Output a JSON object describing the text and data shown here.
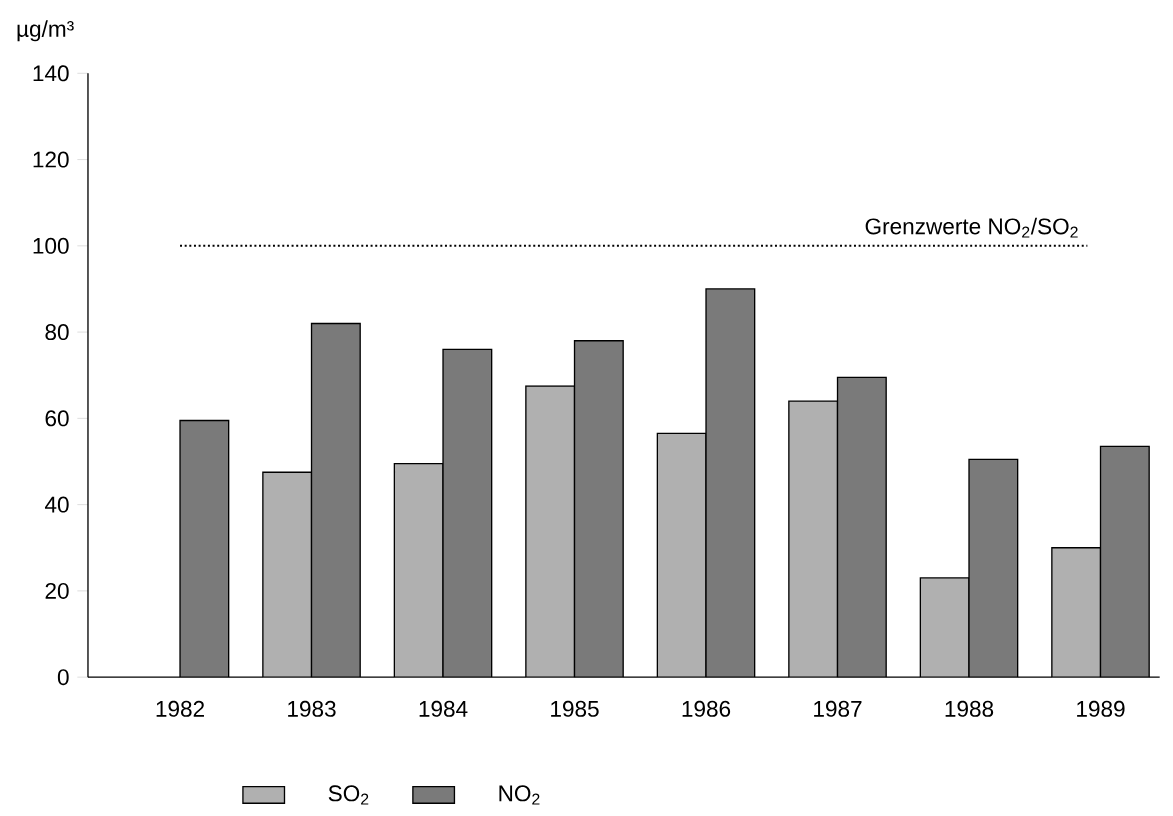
{
  "chart_data": {
    "type": "bar",
    "ylabel": "µg/m³",
    "categories": [
      "1982",
      "1983",
      "1984",
      "1985",
      "1986",
      "1987",
      "1988",
      "1989"
    ],
    "series": [
      {
        "name": "SO$_{2}$",
        "color": "#b0b0b0",
        "values": [
          null,
          47.5,
          49.5,
          67.5,
          56.5,
          64,
          23,
          30
        ]
      },
      {
        "name": "NO$_{2}$",
        "color": "#7a7a7a",
        "values": [
          59.5,
          82,
          76,
          78,
          90,
          69.5,
          50.5,
          53.5
        ]
      }
    ],
    "ylim": [
      0,
      140
    ],
    "yticks": [
      0,
      20,
      40,
      60,
      80,
      100,
      120,
      140
    ],
    "ref_lines": [
      {
        "axis": "y",
        "value": 100,
        "label": "Grenzwerte NO$_{2}$/SO$_{2}$",
        "line_style": "dotted"
      }
    ],
    "grid": false,
    "legend": "bottom"
  }
}
